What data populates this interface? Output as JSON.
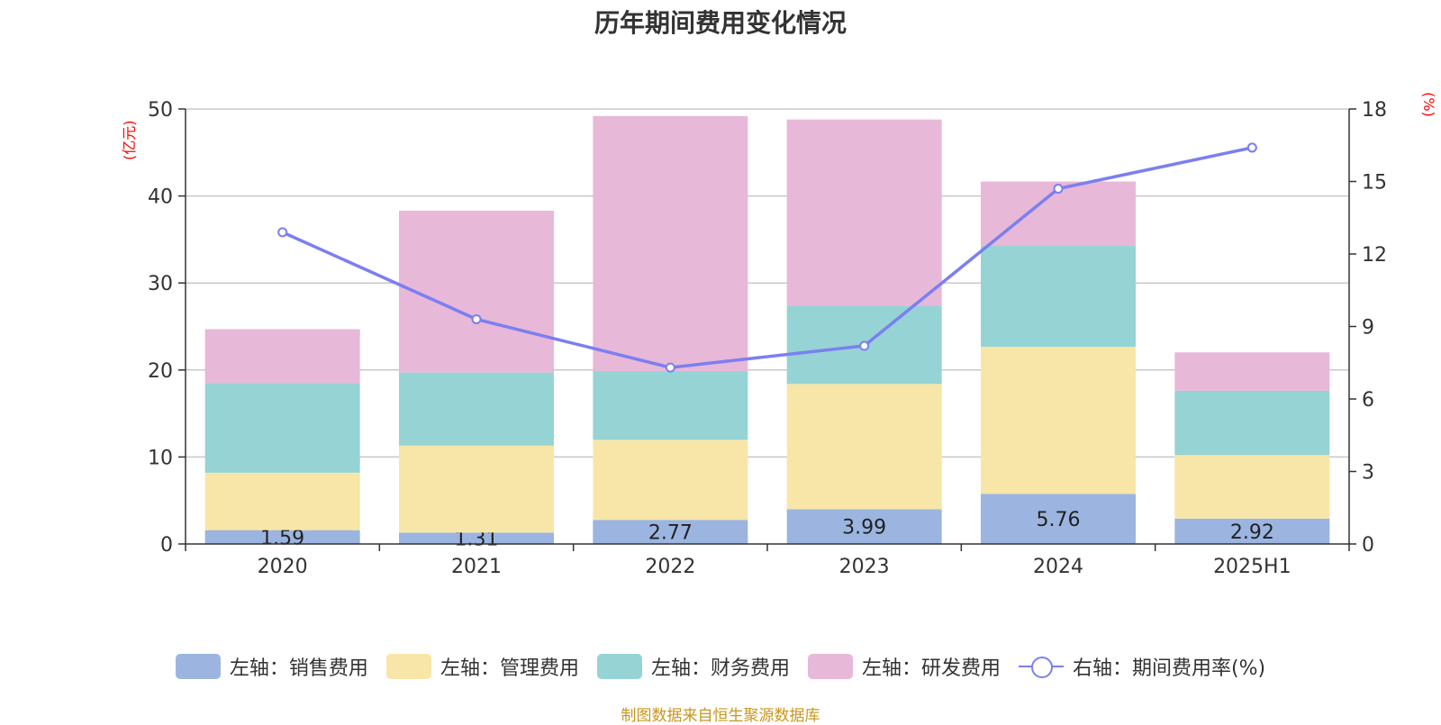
{
  "title": "历年期间费用变化情况",
  "left_unit": "(亿元)",
  "right_unit": "(%)",
  "source": "制图数据来自恒生聚源数据库",
  "colors": {
    "sales": "#9bb5e0",
    "admin": "#f8e6a8",
    "finance": "#96d3d4",
    "rd": "#e8b8d8",
    "line": "#7b7ff0"
  },
  "legend": [
    {
      "label": "左轴：销售费用",
      "key": "sales"
    },
    {
      "label": "左轴：管理费用",
      "key": "admin"
    },
    {
      "label": "左轴：财务费用",
      "key": "finance"
    },
    {
      "label": "左轴：研发费用",
      "key": "rd"
    },
    {
      "label": "右轴：期间费用率(%)",
      "key": "line"
    }
  ],
  "chart_data": {
    "type": "bar",
    "stacked": true,
    "categories": [
      "2020",
      "2021",
      "2022",
      "2023",
      "2024",
      "2025H1"
    ],
    "series": [
      {
        "name": "左轴：销售费用",
        "key": "sales",
        "axis": "left",
        "values": [
          1.59,
          1.31,
          2.77,
          3.99,
          5.76,
          2.92
        ],
        "labels": [
          "1.59",
          "1.31",
          "2.77",
          "3.99",
          "5.76",
          "2.92"
        ]
      },
      {
        "name": "左轴：管理费用",
        "key": "admin",
        "axis": "left",
        "values": [
          6.6,
          10.0,
          9.2,
          14.4,
          16.9,
          7.3
        ]
      },
      {
        "name": "左轴：财务费用",
        "key": "finance",
        "axis": "left",
        "values": [
          10.3,
          8.4,
          7.9,
          9.0,
          11.6,
          7.4
        ]
      },
      {
        "name": "左轴：研发费用",
        "key": "rd",
        "axis": "left",
        "values": [
          6.2,
          18.6,
          29.3,
          21.4,
          7.4,
          4.4
        ]
      },
      {
        "name": "右轴：期间费用率(%)",
        "key": "line",
        "type": "line",
        "axis": "right",
        "values": [
          12.9,
          9.3,
          7.3,
          8.2,
          14.7,
          16.4
        ]
      }
    ],
    "y_left": {
      "min": 0,
      "max": 50,
      "ticks": [
        0,
        10,
        20,
        30,
        40,
        50
      ]
    },
    "y_right": {
      "min": 0,
      "max": 18,
      "ticks": [
        0,
        3,
        6,
        9,
        12,
        15,
        18
      ]
    },
    "grid": true,
    "legend_position": "bottom"
  }
}
